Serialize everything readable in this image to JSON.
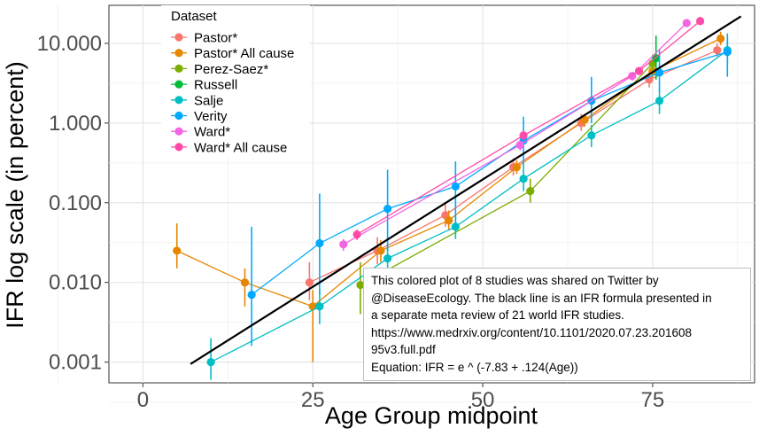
{
  "chart_data": {
    "type": "scatter",
    "xlabel": "Age Group midpoint",
    "ylabel": "IFR log scale (in percent)",
    "xlim": [
      -5,
      90
    ],
    "ylim_log": [
      0.00055,
      30
    ],
    "x_ticks": [
      0,
      25,
      50,
      75
    ],
    "x_tick_labels": [
      "0",
      "25",
      "50",
      "75"
    ],
    "y_ticks": [
      0.001,
      0.01,
      0.1,
      1,
      10
    ],
    "y_tick_labels": [
      "0.001",
      "0.010",
      "0.100",
      "1.000",
      "10.000"
    ],
    "legend_title": "Dataset",
    "legend_position": "top-left",
    "series": [
      {
        "name": "Pastor*",
        "color": "#F8766D",
        "points": [
          {
            "x": 24.5,
            "y": 0.01,
            "lo": 0.006,
            "hi": 0.018
          },
          {
            "x": 34.5,
            "y": 0.025,
            "lo": 0.017,
            "hi": 0.037
          },
          {
            "x": 44.5,
            "y": 0.07,
            "lo": 0.05,
            "hi": 0.1
          },
          {
            "x": 54.5,
            "y": 0.28,
            "lo": 0.22,
            "hi": 0.36
          },
          {
            "x": 64.5,
            "y": 1.0,
            "lo": 0.8,
            "hi": 1.3
          },
          {
            "x": 74.5,
            "y": 3.5,
            "lo": 2.8,
            "hi": 4.4
          },
          {
            "x": 84.5,
            "y": 8.2,
            "lo": 6.8,
            "hi": 10.0
          }
        ]
      },
      {
        "name": "Pastor* All cause",
        "color": "#E58700",
        "points": [
          {
            "x": 5,
            "y": 0.025,
            "lo": 0.015,
            "hi": 0.055
          },
          {
            "x": 15,
            "y": 0.01,
            "lo": 0.005,
            "hi": 0.015
          },
          {
            "x": 25,
            "y": 0.005,
            "lo": 0.001,
            "hi": 0.008
          },
          {
            "x": 35,
            "y": 0.025,
            "lo": 0.018,
            "hi": 0.034
          },
          {
            "x": 45,
            "y": 0.06,
            "lo": 0.045,
            "hi": 0.08
          },
          {
            "x": 55,
            "y": 0.28,
            "lo": 0.23,
            "hi": 0.34
          },
          {
            "x": 65,
            "y": 1.1,
            "lo": 0.9,
            "hi": 1.3
          },
          {
            "x": 75,
            "y": 4.5,
            "lo": 3.7,
            "hi": 5.4
          },
          {
            "x": 85,
            "y": 11.5,
            "lo": 9.5,
            "hi": 14
          }
        ]
      },
      {
        "name": "Perez-Saez*",
        "color": "#7CAE00",
        "points": [
          {
            "x": 32,
            "y": 0.0093,
            "lo": 0.004,
            "hi": 0.018
          },
          {
            "x": 57,
            "y": 0.14,
            "lo": 0.1,
            "hi": 0.2
          },
          {
            "x": 75,
            "y": 5.6,
            "lo": 4.4,
            "hi": 7.2
          }
        ]
      },
      {
        "name": "Russell",
        "color": "#00BA38",
        "points": [
          {
            "x": 75.5,
            "y": 6.5,
            "lo": 3.5,
            "hi": 12.5
          }
        ]
      },
      {
        "name": "Salje",
        "color": "#00BFC4",
        "points": [
          {
            "x": 10,
            "y": 0.001,
            "lo": 0.0006,
            "hi": 0.002
          },
          {
            "x": 26,
            "y": 0.005,
            "lo": 0.003,
            "hi": 0.008
          },
          {
            "x": 36,
            "y": 0.02,
            "lo": 0.013,
            "hi": 0.03
          },
          {
            "x": 46,
            "y": 0.05,
            "lo": 0.035,
            "hi": 0.07
          },
          {
            "x": 56,
            "y": 0.2,
            "lo": 0.14,
            "hi": 0.28
          },
          {
            "x": 66,
            "y": 0.7,
            "lo": 0.5,
            "hi": 0.95
          },
          {
            "x": 76,
            "y": 1.9,
            "lo": 1.3,
            "hi": 2.7
          },
          {
            "x": 86,
            "y": 8.2,
            "lo": 5.5,
            "hi": 12
          }
        ]
      },
      {
        "name": "Verity",
        "color": "#00A9FF",
        "points": [
          {
            "x": 16,
            "y": 0.007,
            "lo": 0.0016,
            "hi": 0.05
          },
          {
            "x": 26,
            "y": 0.031,
            "lo": 0.007,
            "hi": 0.13
          },
          {
            "x": 36,
            "y": 0.084,
            "lo": 0.025,
            "hi": 0.26
          },
          {
            "x": 46,
            "y": 0.16,
            "lo": 0.05,
            "hi": 0.33
          },
          {
            "x": 56,
            "y": 0.6,
            "lo": 0.28,
            "hi": 1.2
          },
          {
            "x": 66,
            "y": 1.9,
            "lo": 1.0,
            "hi": 3.8
          },
          {
            "x": 76,
            "y": 4.3,
            "lo": 2.5,
            "hi": 8.5
          },
          {
            "x": 86,
            "y": 7.8,
            "lo": 3.8,
            "hi": 13.3
          }
        ]
      },
      {
        "name": "Ward*",
        "color": "#F564E3",
        "points": [
          {
            "x": 29.5,
            "y": 0.03,
            "lo": 0.025,
            "hi": 0.035
          },
          {
            "x": 55.5,
            "y": 0.53,
            "lo": 0.45,
            "hi": 0.6
          },
          {
            "x": 72,
            "y": 3.9,
            "lo": 3.4,
            "hi": 4.4
          },
          {
            "x": 80,
            "y": 18,
            "lo": 16,
            "hi": 20
          }
        ]
      },
      {
        "name": "Ward* All cause",
        "color": "#FF4AA8",
        "points": [
          {
            "x": 31.5,
            "y": 0.04,
            "lo": 0.034,
            "hi": 0.046
          },
          {
            "x": 56,
            "y": 0.7,
            "lo": 0.6,
            "hi": 0.8
          },
          {
            "x": 73,
            "y": 4.5,
            "lo": 4.0,
            "hi": 5.0
          },
          {
            "x": 82,
            "y": 19,
            "lo": 17,
            "hi": 21.5
          }
        ]
      }
    ],
    "formula_line": {
      "x0": 7,
      "x1": 88,
      "a": -7.83,
      "b": 0.124,
      "color": "#000000"
    }
  },
  "annotation": {
    "lines": [
      "This colored plot of 8 studies was shared on Twitter by",
      "@DiseaseEcology.  The black line is an IFR formula presented in",
      "a separate meta review of 21 world  IFR studies.",
      "https://www.medrxiv.org/content/10.1101/2020.07.23.201608",
      "95v3.full.pdf",
      "Equation: IFR = e ^ (-7.83 + .124(Age))"
    ]
  }
}
